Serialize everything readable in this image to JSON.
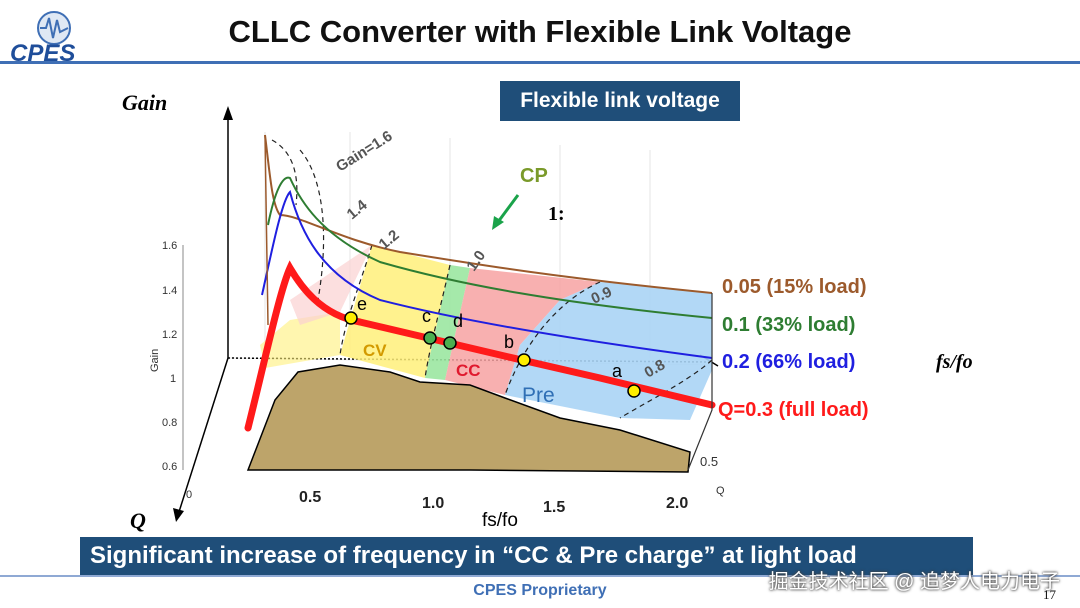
{
  "header": {
    "title": "CLLC Converter with Flexible Link Voltage",
    "logo_text": "CPES"
  },
  "badge": "Flexible link voltage",
  "banner": "Significant increase of frequency in “CC & Pre charge” at light load",
  "footer": "CPES Proprietary",
  "watermark": "掘金技术社区 @ 追梦人电力电子",
  "page_number": "17",
  "colors": {
    "accent": "#1f4e79",
    "rule": "#3f6fb5",
    "q005": "#9c5a2c",
    "q01": "#2e7d32",
    "q02": "#1f1fe0",
    "q03": "#ff1a1a",
    "cv_region": "#fff07a",
    "cp_region": "#9be7a1",
    "cc_region": "#f7a2a2",
    "pre_region": "#aad4f5",
    "surface": "#bda46a"
  },
  "chart_data": {
    "type": "surface-3d",
    "axis_titles": {
      "z": "Gain",
      "x": "fs/fo",
      "y": "Q",
      "z_small": "Gain",
      "y_small": "Q",
      "x_right": "fs/fo"
    },
    "z_ticks": [
      "1.6",
      "1.4",
      "1.2",
      "1",
      "0.8",
      "0.6"
    ],
    "x_ticks": [
      "0.5",
      "1.0",
      "1.5",
      "2.0"
    ],
    "y_ticks": [
      "0",
      "0.5"
    ],
    "gain_contours": [
      "Gain=1.6",
      "1.4",
      "1.2",
      "1.0",
      "0.9",
      "0.8"
    ],
    "regions": [
      "CV",
      "CP",
      "CC",
      "Pre"
    ],
    "points": [
      "a",
      "b",
      "c",
      "d",
      "e"
    ],
    "cp_label": "CP",
    "ratio_label": "1:",
    "series": [
      {
        "name": "0.05 (15% load)",
        "color": "#9c5a2c"
      },
      {
        "name": "0.1 (33% load)",
        "color": "#2e7d32"
      },
      {
        "name": "0.2 (66% load)",
        "color": "#1f1fe0"
      },
      {
        "name": "Q=0.3 (full load)",
        "color": "#ff1a1a"
      }
    ]
  }
}
